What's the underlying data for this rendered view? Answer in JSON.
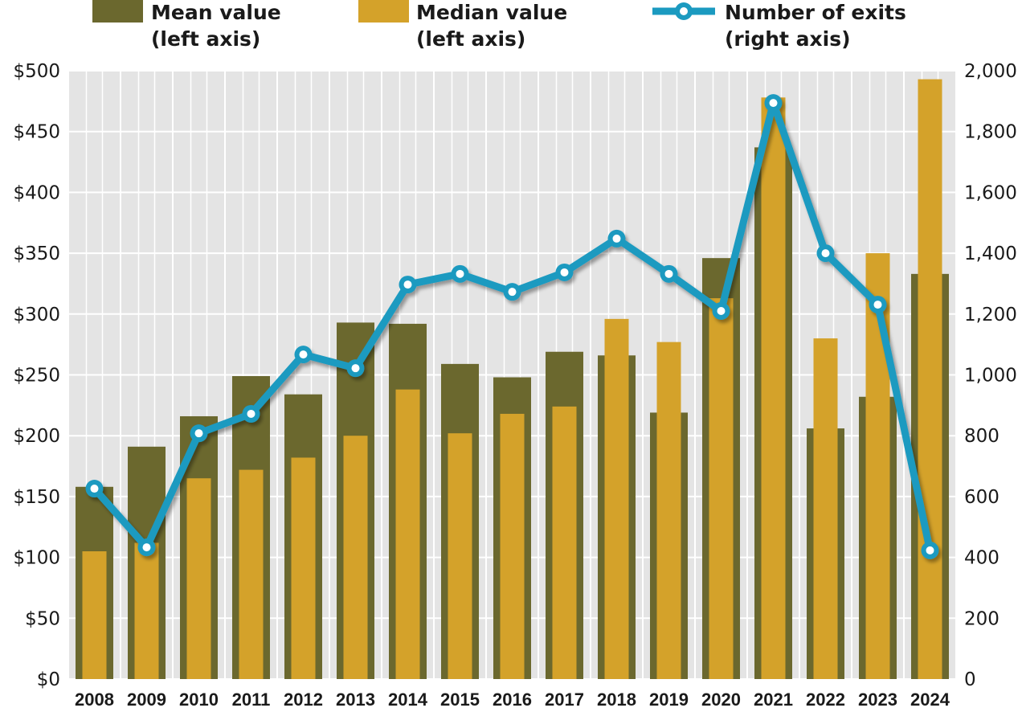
{
  "chart_data": {
    "type": "bar+line",
    "categories": [
      "2008",
      "2009",
      "2010",
      "2011",
      "2012",
      "2013",
      "2014",
      "2015",
      "2016",
      "2017",
      "2018",
      "2019",
      "2020",
      "2021",
      "2022",
      "2023",
      "2024"
    ],
    "series": [
      {
        "name": "Mean value",
        "sub": "(left axis)",
        "type": "bar",
        "axis": "left",
        "color": "#6b682e",
        "values": [
          158,
          191,
          216,
          249,
          234,
          293,
          292,
          259,
          248,
          269,
          266,
          219,
          346,
          437,
          206,
          232,
          333
        ]
      },
      {
        "name": "Median value",
        "sub": "(left axis)",
        "type": "bar",
        "axis": "left",
        "color": "#d4a22a",
        "values": [
          105,
          112,
          165,
          172,
          182,
          200,
          238,
          202,
          218,
          224,
          296,
          277,
          313,
          478,
          280,
          350,
          493
        ]
      },
      {
        "name": "Number of exits",
        "sub": "(right axis)",
        "type": "line",
        "axis": "right",
        "color": "#1b9ac0",
        "values": [
          626,
          433,
          808,
          872,
          1067,
          1022,
          1297,
          1332,
          1273,
          1337,
          1448,
          1332,
          1210,
          1894,
          1400,
          1231,
          423
        ]
      }
    ],
    "left_axis": {
      "range": [
        0,
        500
      ],
      "ticks": [
        "$0",
        "$50",
        "$100",
        "$150",
        "$200",
        "$250",
        "$300",
        "$350",
        "$400",
        "$450",
        "$500"
      ]
    },
    "right_axis": {
      "range": [
        0,
        2000
      ],
      "ticks": [
        "0",
        "200",
        "400",
        "600",
        "800",
        "1,000",
        "1,200",
        "1,400",
        "1,600",
        "1,800",
        "2,000"
      ]
    },
    "grid": true,
    "legend": "top",
    "plot_background": "#e4e4e4"
  }
}
